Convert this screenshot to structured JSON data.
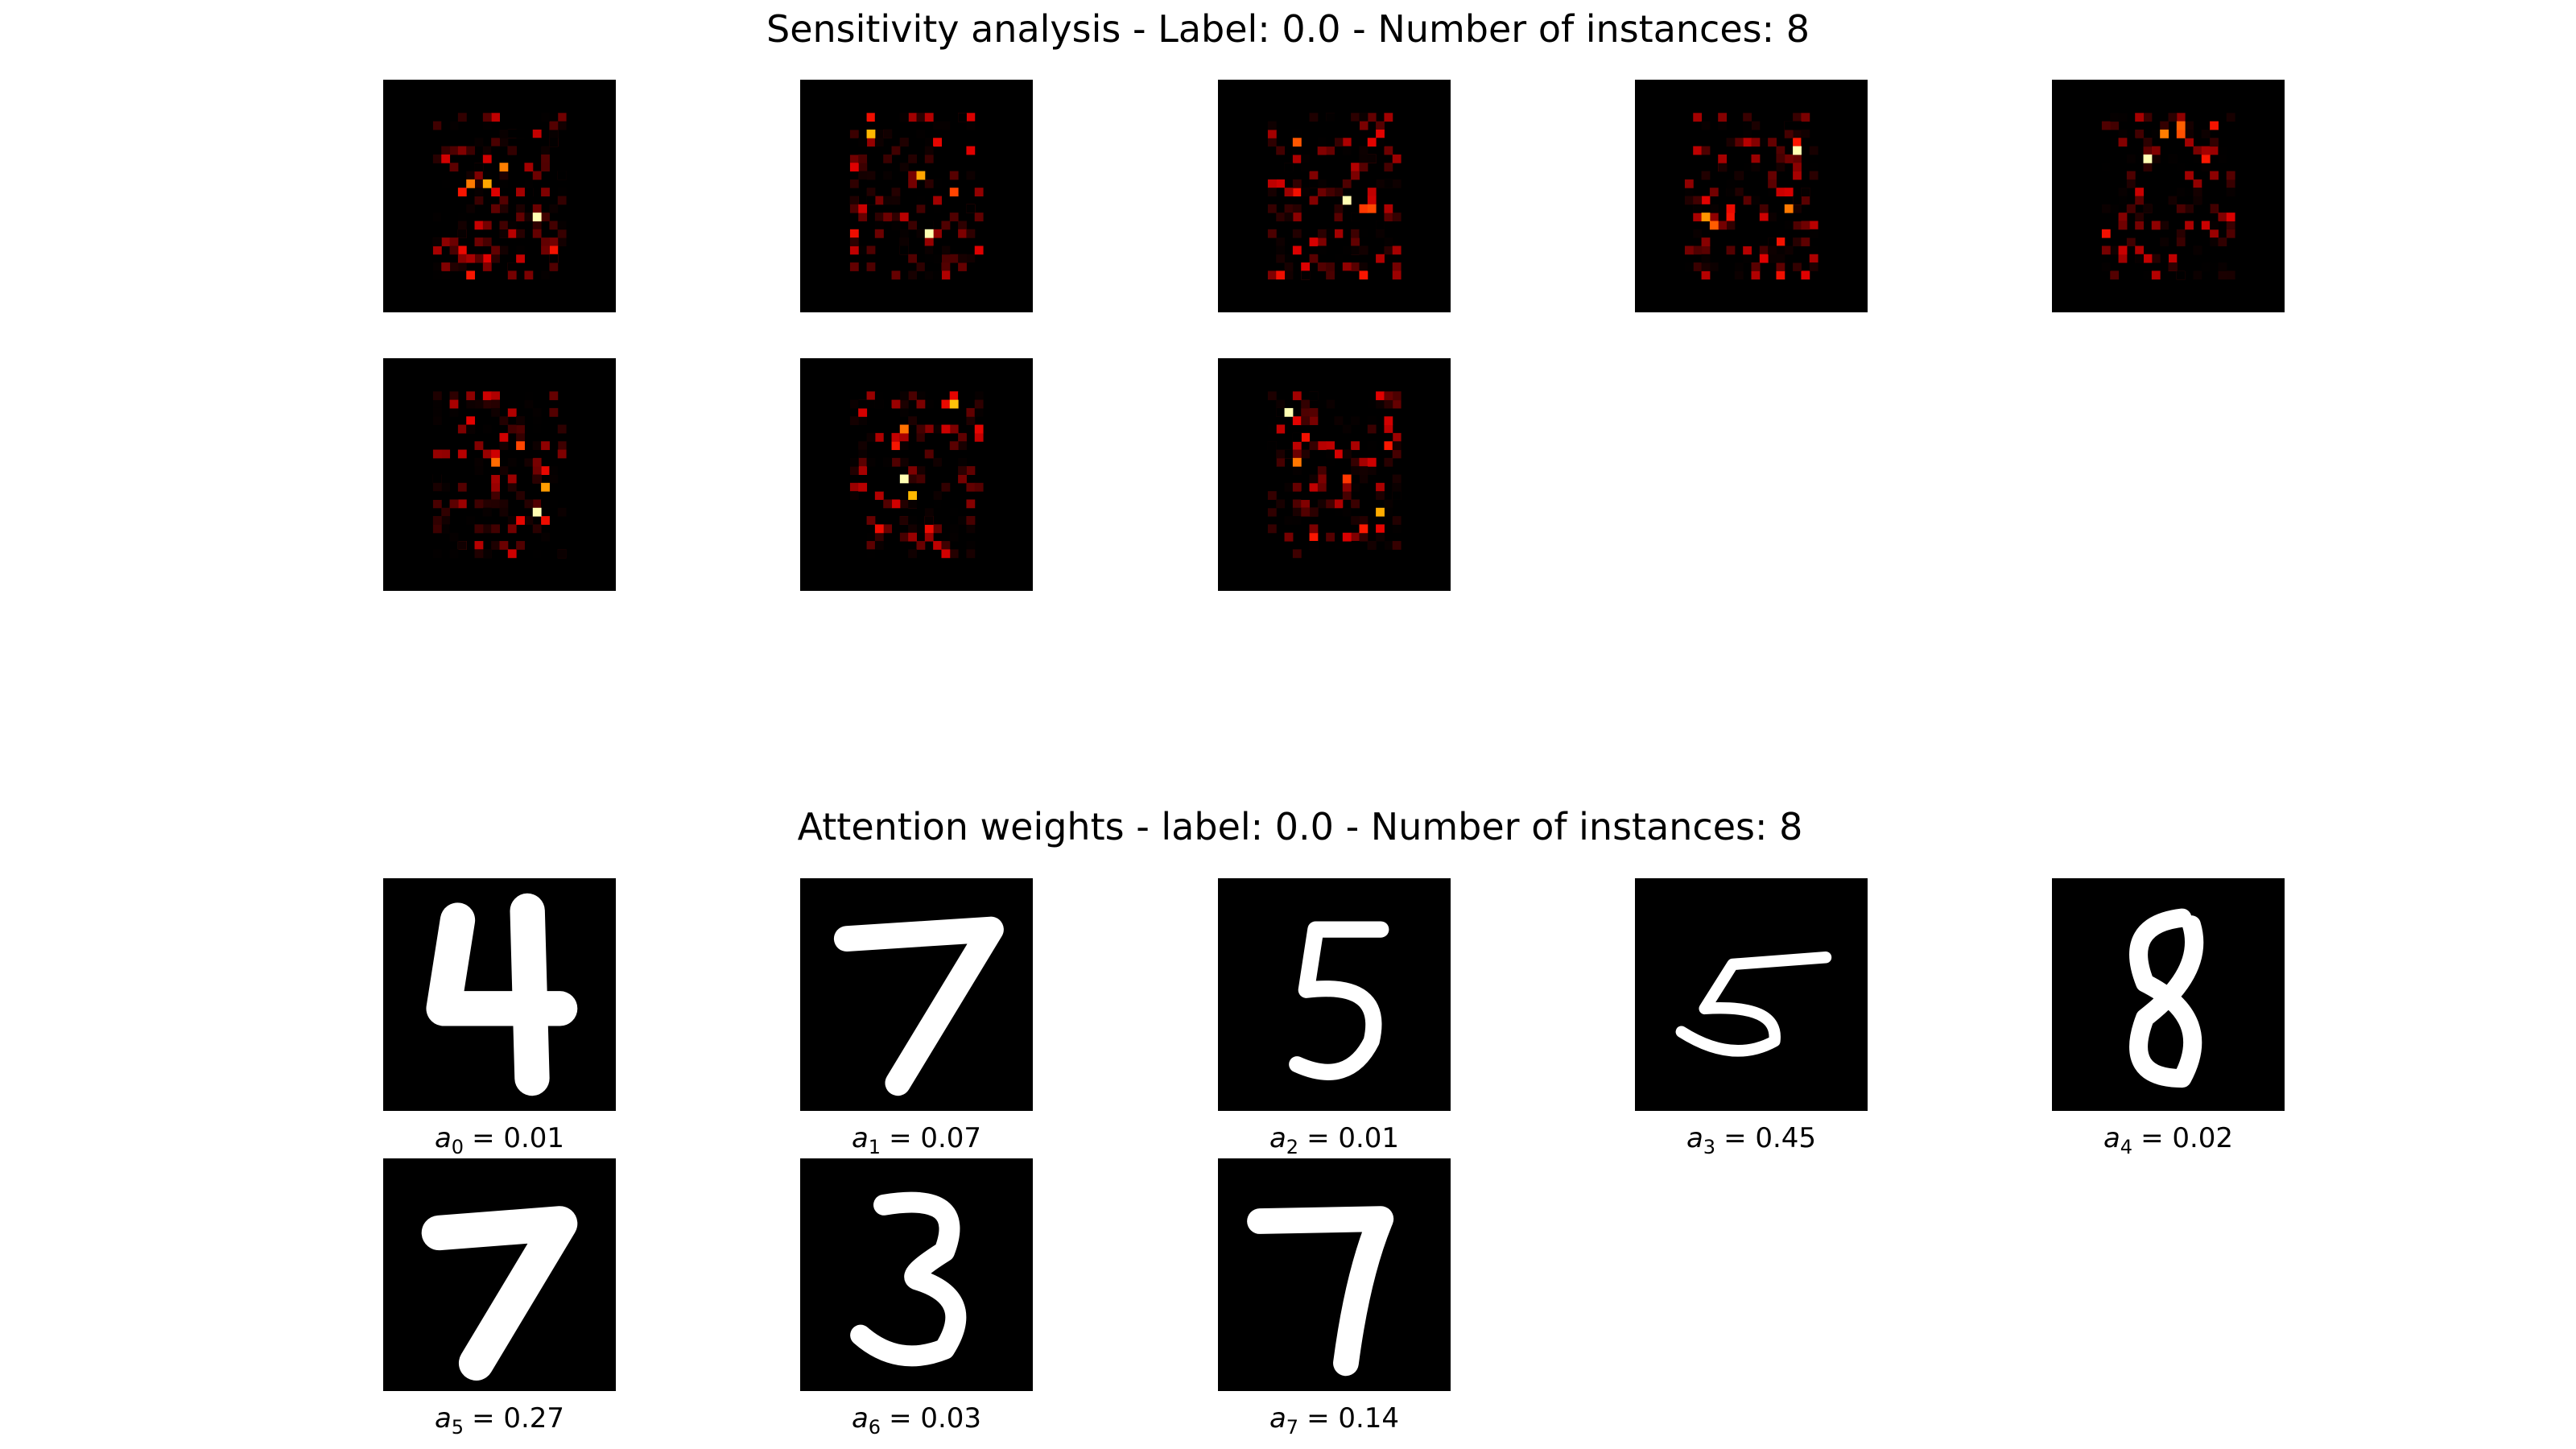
{
  "sensitivity": {
    "title": "Sensitivity analysis - Label: 0.0 - Number of instances: 8"
  },
  "attention": {
    "title": "Attention weights - label: 0.0 - Number of instances: 8",
    "captions": [
      {
        "symbol": "a",
        "index": "0",
        "value": "= 0.01"
      },
      {
        "symbol": "a",
        "index": "1",
        "value": "= 0.07"
      },
      {
        "symbol": "a",
        "index": "2",
        "value": "= 0.01"
      },
      {
        "symbol": "a",
        "index": "3",
        "value": "= 0.45"
      },
      {
        "symbol": "a",
        "index": "4",
        "value": "= 0.02"
      },
      {
        "symbol": "a",
        "index": "5",
        "value": "= 0.27"
      },
      {
        "symbol": "a",
        "index": "6",
        "value": "= 0.03"
      },
      {
        "symbol": "a",
        "index": "7",
        "value": "= 0.14"
      }
    ]
  }
}
